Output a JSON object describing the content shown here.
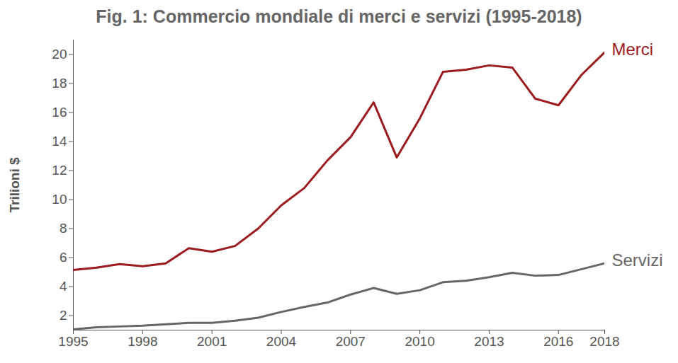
{
  "chart_data": {
    "type": "line",
    "title": "Fig. 1: Commercio mondiale di merci e servizi (1995-2018)",
    "y_label": "Trilioni $",
    "x": [
      1995,
      1996,
      1997,
      1998,
      1999,
      2000,
      2001,
      2002,
      2003,
      2004,
      2005,
      2006,
      2007,
      2008,
      2009,
      2010,
      2011,
      2012,
      2013,
      2014,
      2015,
      2016,
      2017,
      2018
    ],
    "series": [
      {
        "name": "Merci",
        "color": "#9b1b1e",
        "values": [
          5.15,
          5.3,
          5.55,
          5.4,
          5.6,
          6.65,
          6.4,
          6.8,
          8.0,
          9.6,
          10.8,
          12.7,
          14.3,
          16.7,
          12.9,
          15.6,
          18.8,
          18.95,
          19.25,
          19.1,
          16.95,
          16.5,
          18.6,
          20.15
        ]
      },
      {
        "name": "Servizi",
        "color": "#666666",
        "values": [
          1.05,
          1.2,
          1.25,
          1.3,
          1.4,
          1.5,
          1.5,
          1.65,
          1.85,
          2.25,
          2.6,
          2.9,
          3.45,
          3.9,
          3.5,
          3.75,
          4.3,
          4.4,
          4.65,
          4.95,
          4.75,
          4.8,
          5.2,
          5.6
        ]
      }
    ],
    "xlim": [
      1995,
      2018
    ],
    "xticks": [
      1995,
      1998,
      2001,
      2004,
      2007,
      2010,
      2013,
      2016,
      2018
    ],
    "ylim": [
      1,
      21
    ],
    "yticks": [
      2,
      4,
      6,
      8,
      10,
      12,
      14,
      16,
      18,
      20
    ],
    "grid": false
  }
}
